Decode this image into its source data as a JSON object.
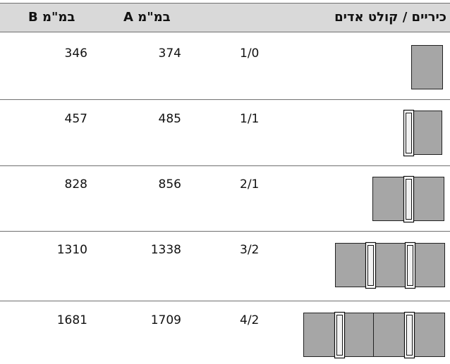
{
  "header": {
    "col_b": "B במ\"מ",
    "col_a": "A במ\"מ",
    "col_desc": "כיריים / קולט אדים"
  },
  "rows": [
    {
      "b": "346",
      "a": "374",
      "code": "1/0"
    },
    {
      "b": "457",
      "a": "485",
      "code": "1/1"
    },
    {
      "b": "828",
      "a": "856",
      "code": "2/1"
    },
    {
      "b": "1310",
      "a": "1338",
      "code": "3/2"
    },
    {
      "b": "1681",
      "a": "1709",
      "code": "4/2"
    }
  ],
  "colors": {
    "header_bg": "#d9d9d9",
    "panel_fill": "#a6a6a6",
    "rule": "#707070"
  }
}
